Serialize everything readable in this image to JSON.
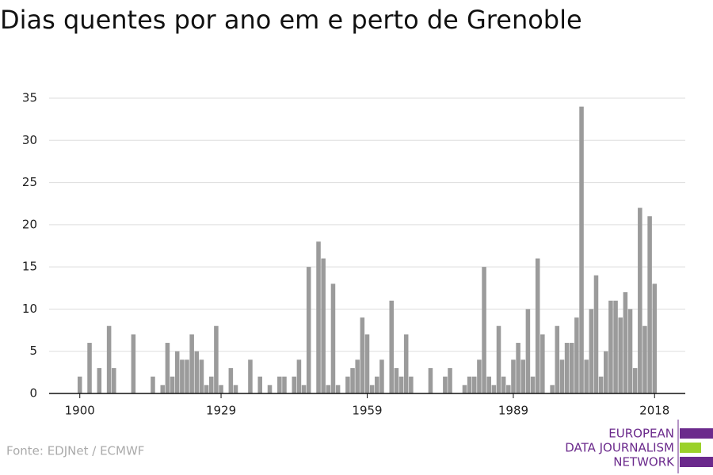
{
  "chart_data": {
    "type": "bar",
    "title": "Dias quentes por ano em e perto de Grenoble",
    "source": "Fonte: EDJNet / ECMWF",
    "logo": [
      "EUROPEAN",
      "DATA JOURNALISM",
      "NETWORK"
    ],
    "color": "#9b9b9b",
    "x": [
      1900,
      1901,
      1902,
      1903,
      1904,
      1905,
      1906,
      1907,
      1908,
      1909,
      1910,
      1911,
      1912,
      1913,
      1914,
      1915,
      1916,
      1917,
      1918,
      1919,
      1920,
      1921,
      1922,
      1923,
      1924,
      1925,
      1926,
      1927,
      1928,
      1929,
      1930,
      1931,
      1932,
      1933,
      1934,
      1935,
      1936,
      1937,
      1938,
      1939,
      1940,
      1941,
      1942,
      1943,
      1944,
      1945,
      1946,
      1947,
      1948,
      1949,
      1950,
      1951,
      1952,
      1953,
      1954,
      1955,
      1956,
      1957,
      1958,
      1959,
      1960,
      1961,
      1962,
      1963,
      1964,
      1965,
      1966,
      1967,
      1968,
      1969,
      1970,
      1971,
      1972,
      1973,
      1974,
      1975,
      1976,
      1977,
      1978,
      1979,
      1980,
      1981,
      1982,
      1983,
      1984,
      1985,
      1986,
      1987,
      1988,
      1989,
      1990,
      1991,
      1992,
      1993,
      1994,
      1995,
      1996,
      1997,
      1998,
      1999,
      2000,
      2001,
      2002,
      2003,
      2004,
      2005,
      2006,
      2007,
      2008,
      2009,
      2010,
      2011,
      2012,
      2013,
      2014,
      2015,
      2016,
      2017,
      2018
    ],
    "values": [
      2,
      0,
      6,
      0,
      3,
      0,
      8,
      3,
      0,
      0,
      0,
      7,
      0,
      0,
      0,
      2,
      0,
      1,
      6,
      2,
      5,
      4,
      4,
      7,
      5,
      4,
      1,
      2,
      8,
      1,
      0,
      3,
      1,
      0,
      0,
      4,
      0,
      2,
      0,
      1,
      0,
      2,
      2,
      0,
      2,
      4,
      1,
      15,
      0,
      18,
      16,
      1,
      13,
      1,
      0,
      2,
      3,
      4,
      9,
      7,
      1,
      2,
      4,
      0,
      11,
      3,
      2,
      7,
      2,
      0,
      0,
      0,
      3,
      0,
      0,
      2,
      3,
      0,
      0,
      1,
      2,
      2,
      4,
      15,
      2,
      1,
      8,
      2,
      1,
      4,
      6,
      4,
      10,
      2,
      16,
      7,
      0,
      1,
      8,
      4,
      6,
      6,
      9,
      34,
      4,
      10,
      14,
      2,
      5,
      11,
      11,
      9,
      12,
      10,
      3,
      22,
      8,
      21,
      13
    ],
    "xlim": [
      1893.7,
      2024.3
    ],
    "xticks": [
      1900,
      1929,
      1959,
      1989,
      2018
    ],
    "ylim": [
      0,
      35
    ],
    "yticks": [
      0,
      5,
      10,
      15,
      20,
      25,
      30,
      35
    ],
    "grid": true
  }
}
